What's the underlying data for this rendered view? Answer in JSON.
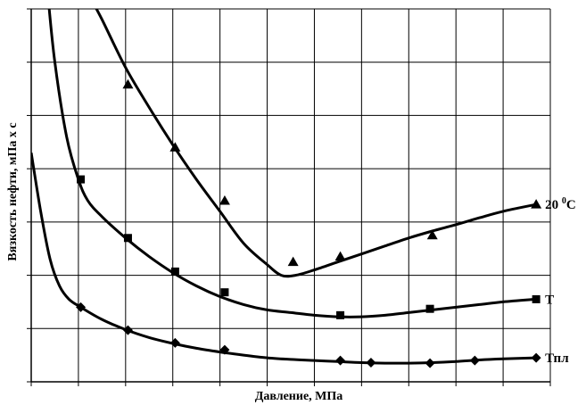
{
  "chart_data": {
    "type": "line",
    "xlabel": "Давление, МПа",
    "ylabel": "Вязкость нефти,  мПа х с",
    "xlim": [
      0,
      11
    ],
    "ylim": [
      0,
      7
    ],
    "x_grid_count": 11,
    "y_grid_count": 7,
    "grid": true,
    "tick_labels_shown": false,
    "series": [
      {
        "name": "20 °C",
        "label_main": "20 ",
        "label_sup": "0",
        "label_tail": "C",
        "marker": "triangle",
        "curve": [
          [
            1.2,
            7.3
          ],
          [
            1.5,
            6.8
          ],
          [
            2.0,
            5.9
          ],
          [
            2.5,
            5.15
          ],
          [
            3.0,
            4.45
          ],
          [
            3.5,
            3.8
          ],
          [
            4.0,
            3.2
          ],
          [
            4.5,
            2.6
          ],
          [
            5.0,
            2.2
          ],
          [
            5.3,
            2.0
          ],
          [
            5.6,
            2.0
          ],
          [
            6.0,
            2.1
          ],
          [
            6.5,
            2.25
          ],
          [
            7.0,
            2.4
          ],
          [
            7.5,
            2.55
          ],
          [
            8.0,
            2.7
          ],
          [
            8.5,
            2.83
          ],
          [
            9.0,
            2.95
          ],
          [
            9.5,
            3.08
          ],
          [
            10.0,
            3.2
          ],
          [
            10.7,
            3.33
          ]
        ],
        "markers": [
          [
            2.05,
            5.58
          ],
          [
            3.05,
            4.4
          ],
          [
            4.1,
            3.4
          ],
          [
            5.55,
            2.25
          ],
          [
            6.55,
            2.35
          ],
          [
            8.5,
            2.75
          ],
          [
            10.7,
            3.33
          ]
        ]
      },
      {
        "name": "T",
        "label_main": "T",
        "marker": "square",
        "curve": [
          [
            0.35,
            7.3
          ],
          [
            0.5,
            6.0
          ],
          [
            0.75,
            4.6
          ],
          [
            1.0,
            3.8
          ],
          [
            1.2,
            3.4
          ],
          [
            1.5,
            3.1
          ],
          [
            2.0,
            2.7
          ],
          [
            2.5,
            2.35
          ],
          [
            3.0,
            2.05
          ],
          [
            3.5,
            1.8
          ],
          [
            4.0,
            1.6
          ],
          [
            4.5,
            1.45
          ],
          [
            5.0,
            1.35
          ],
          [
            5.5,
            1.3
          ],
          [
            6.0,
            1.25
          ],
          [
            6.5,
            1.22
          ],
          [
            7.0,
            1.22
          ],
          [
            7.5,
            1.25
          ],
          [
            8.0,
            1.3
          ],
          [
            8.5,
            1.35
          ],
          [
            9.0,
            1.4
          ],
          [
            9.5,
            1.45
          ],
          [
            10.0,
            1.5
          ],
          [
            10.7,
            1.55
          ]
        ],
        "markers": [
          [
            1.05,
            3.8
          ],
          [
            2.05,
            2.7
          ],
          [
            3.05,
            2.07
          ],
          [
            4.1,
            1.68
          ],
          [
            6.55,
            1.25
          ],
          [
            8.45,
            1.37
          ],
          [
            10.7,
            1.55
          ]
        ]
      },
      {
        "name": "Тпл",
        "label_main": "Тпл",
        "marker": "diamond",
        "curve": [
          [
            0.0,
            4.3
          ],
          [
            0.2,
            3.2
          ],
          [
            0.4,
            2.3
          ],
          [
            0.6,
            1.8
          ],
          [
            0.8,
            1.55
          ],
          [
            1.05,
            1.4
          ],
          [
            1.5,
            1.17
          ],
          [
            2.0,
            0.98
          ],
          [
            2.5,
            0.83
          ],
          [
            3.0,
            0.72
          ],
          [
            3.5,
            0.63
          ],
          [
            4.0,
            0.56
          ],
          [
            4.5,
            0.5
          ],
          [
            5.0,
            0.45
          ],
          [
            5.5,
            0.42
          ],
          [
            6.0,
            0.4
          ],
          [
            6.5,
            0.38
          ],
          [
            7.0,
            0.36
          ],
          [
            7.5,
            0.35
          ],
          [
            8.0,
            0.35
          ],
          [
            8.5,
            0.36
          ],
          [
            9.0,
            0.38
          ],
          [
            9.5,
            0.41
          ],
          [
            10.0,
            0.43
          ],
          [
            10.7,
            0.45
          ]
        ],
        "markers": [
          [
            1.05,
            1.4
          ],
          [
            2.05,
            0.97
          ],
          [
            3.05,
            0.73
          ],
          [
            4.1,
            0.6
          ],
          [
            6.55,
            0.4
          ],
          [
            7.2,
            0.36
          ],
          [
            8.45,
            0.35
          ],
          [
            9.4,
            0.4
          ],
          [
            10.7,
            0.45
          ]
        ]
      }
    ]
  }
}
